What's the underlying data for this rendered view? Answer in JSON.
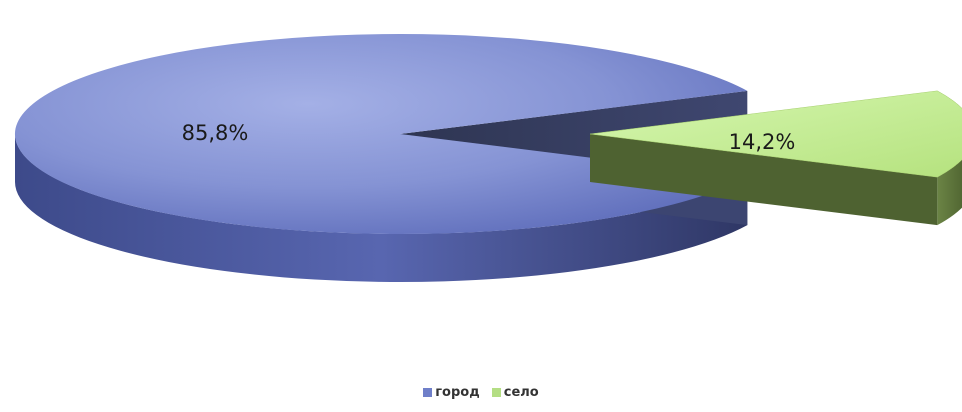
{
  "chart_data": {
    "type": "pie",
    "style": "3d-exploded",
    "title": "",
    "slices": [
      {
        "name": "город",
        "value": 85.8,
        "label": "85,8%",
        "color": "#6f7fc9",
        "side_color": "#3b4680"
      },
      {
        "name": "село",
        "value": 14.2,
        "label": "14,2%",
        "color": "#c4ec94",
        "side_color": "#566b34",
        "exploded": true
      }
    ],
    "legend": {
      "position": "bottom",
      "items": [
        {
          "label": "город",
          "color": "#6f7fc9"
        },
        {
          "label": "село",
          "color": "#b4de84"
        }
      ]
    }
  }
}
